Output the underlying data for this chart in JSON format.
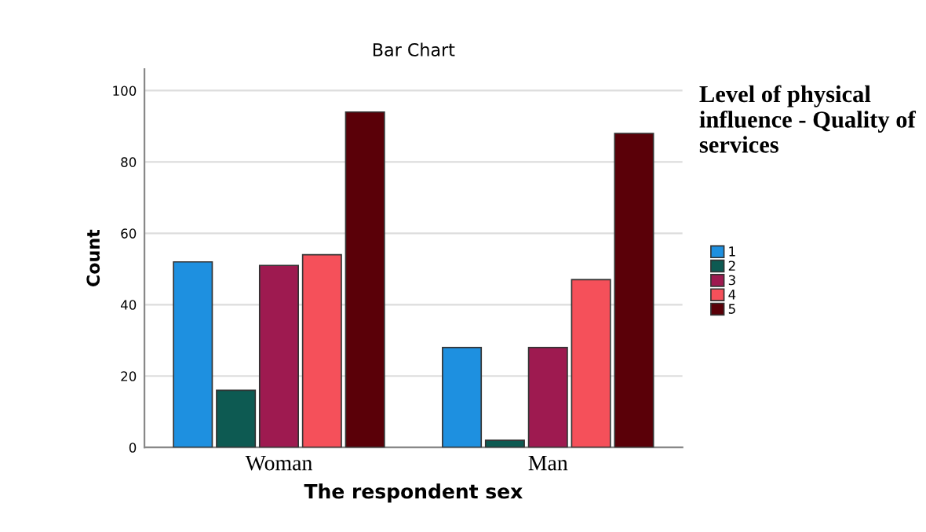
{
  "chart_data": {
    "type": "bar",
    "title": "Bar Chart",
    "xlabel": "The respondent sex",
    "ylabel": "Count",
    "legend_title": "Level of physical influence - Quality of services",
    "categories": [
      "Woman",
      "Man"
    ],
    "series": [
      {
        "name": "1",
        "color": "#1e90e0",
        "values": [
          52,
          28
        ]
      },
      {
        "name": "2",
        "color": "#0d5a52",
        "values": [
          16,
          2
        ]
      },
      {
        "name": "3",
        "color": "#9e1a50",
        "values": [
          51,
          28
        ]
      },
      {
        "name": "4",
        "color": "#f5505a",
        "values": [
          54,
          47
        ]
      },
      {
        "name": "5",
        "color": "#5a0008",
        "values": [
          94,
          88
        ]
      }
    ],
    "ylim": [
      0,
      106
    ],
    "yticks": [
      0,
      20,
      40,
      60,
      80,
      100
    ],
    "grid": "y",
    "legend": "right"
  }
}
